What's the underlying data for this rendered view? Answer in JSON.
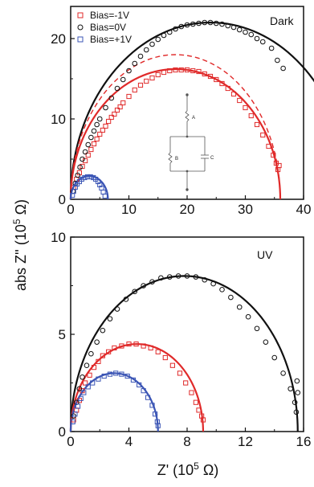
{
  "ylabel_parts": [
    "abs Z'' (10",
    "5",
    " Ω)"
  ],
  "xlabel_parts": [
    "Z' (10",
    "5",
    " Ω)"
  ],
  "colors": {
    "red": "#e02a2a",
    "black": "#111111",
    "blue": "#3b55b5",
    "circuit": "#555555"
  },
  "circuit": {
    "labels": [
      "A",
      "B",
      "C"
    ]
  },
  "chart_data": [
    {
      "type": "scatter",
      "panel": "top",
      "annotation": "Dark",
      "xlim": [
        0,
        40
      ],
      "ylim": [
        0,
        24
      ],
      "x_ticks": [
        0,
        10,
        20,
        30,
        40
      ],
      "y_ticks": [
        0,
        10,
        20
      ],
      "legend_placement": "top-left",
      "series": [
        {
          "name": "Bias=-1V",
          "color": "red",
          "marker": "square",
          "points": [
            [
              0.5,
              1.5
            ],
            [
              1.0,
              2.5
            ],
            [
              1.5,
              3.3
            ],
            [
              2.0,
              4.1
            ],
            [
              2.5,
              4.8
            ],
            [
              3.0,
              5.5
            ],
            [
              3.5,
              6.2
            ],
            [
              4.0,
              6.9
            ],
            [
              4.5,
              7.5
            ],
            [
              5.0,
              8.1
            ],
            [
              5.5,
              8.6
            ],
            [
              6.0,
              9.1
            ],
            [
              6.5,
              9.7
            ],
            [
              7.0,
              10.2
            ],
            [
              7.5,
              10.6
            ],
            [
              8.0,
              11.1
            ],
            [
              8.5,
              11.5
            ],
            [
              9.0,
              12.0
            ],
            [
              10.0,
              12.8
            ],
            [
              11.0,
              13.6
            ],
            [
              12.0,
              14.2
            ],
            [
              13.0,
              14.7
            ],
            [
              14.0,
              15.1
            ],
            [
              15.0,
              15.5
            ],
            [
              16.0,
              15.8
            ],
            [
              17.0,
              16.0
            ],
            [
              18.0,
              16.1
            ],
            [
              19.0,
              16.1
            ],
            [
              20.0,
              16.1
            ],
            [
              21.0,
              16.0
            ],
            [
              22.0,
              15.9
            ],
            [
              23.0,
              15.6
            ],
            [
              24.0,
              15.3
            ],
            [
              25.0,
              14.9
            ],
            [
              26.0,
              14.4
            ],
            [
              27.0,
              13.8
            ],
            [
              28.0,
              13.1
            ],
            [
              29.0,
              12.3
            ],
            [
              30.0,
              11.4
            ],
            [
              31.0,
              10.4
            ],
            [
              32.0,
              9.3
            ],
            [
              33.0,
              8.0
            ],
            [
              34.0,
              6.6
            ],
            [
              34.8,
              5.5
            ],
            [
              35.3,
              4.5
            ],
            [
              35.6,
              3.7
            ],
            [
              35.8,
              4.2
            ]
          ]
        },
        {
          "name": "Bias=0V",
          "color": "black",
          "marker": "circle",
          "points": [
            [
              0.4,
              1.0
            ],
            [
              0.8,
              2.0
            ],
            [
              1.2,
              3.0
            ],
            [
              1.6,
              4.0
            ],
            [
              2.0,
              5.0
            ],
            [
              2.5,
              5.9
            ],
            [
              3.0,
              6.8
            ],
            [
              3.5,
              7.7
            ],
            [
              4.0,
              8.5
            ],
            [
              4.5,
              9.3
            ],
            [
              5.0,
              10.0
            ],
            [
              6.0,
              11.4
            ],
            [
              7.0,
              12.6
            ],
            [
              8.0,
              13.8
            ],
            [
              9.0,
              14.9
            ],
            [
              10.0,
              16.0
            ],
            [
              11.0,
              16.9
            ],
            [
              12.0,
              17.8
            ],
            [
              13.0,
              18.6
            ],
            [
              14.0,
              19.3
            ],
            [
              15.0,
              19.9
            ],
            [
              16.0,
              20.4
            ],
            [
              17.0,
              20.8
            ],
            [
              18.0,
              21.2
            ],
            [
              19.0,
              21.5
            ],
            [
              20.0,
              21.7
            ],
            [
              21.0,
              21.8
            ],
            [
              22.0,
              21.9
            ],
            [
              23.0,
              22.0
            ],
            [
              24.0,
              22.0
            ],
            [
              25.0,
              21.9
            ],
            [
              26.0,
              21.8
            ],
            [
              27.0,
              21.6
            ],
            [
              28.0,
              21.4
            ],
            [
              29.0,
              21.1
            ],
            [
              30.0,
              20.8
            ],
            [
              31.0,
              20.5
            ],
            [
              32.0,
              20.0
            ],
            [
              33.0,
              19.6
            ],
            [
              34.5,
              18.8
            ],
            [
              35.5,
              17.3
            ],
            [
              36.5,
              16.3
            ]
          ]
        },
        {
          "name": "Bias=+1V",
          "color": "blue",
          "marker": "square",
          "points": [
            [
              0.3,
              0.5
            ],
            [
              0.5,
              1.0
            ],
            [
              0.8,
              1.5
            ],
            [
              1.1,
              1.9
            ],
            [
              1.5,
              2.2
            ],
            [
              1.9,
              2.5
            ],
            [
              2.4,
              2.7
            ],
            [
              2.9,
              2.8
            ],
            [
              3.4,
              2.8
            ],
            [
              3.9,
              2.7
            ],
            [
              4.3,
              2.5
            ],
            [
              4.7,
              2.2
            ],
            [
              5.0,
              1.8
            ],
            [
              5.3,
              1.4
            ],
            [
              5.6,
              0.9
            ],
            [
              5.9,
              0.4
            ]
          ]
        }
      ],
      "fit_curves": [
        {
          "color": "black",
          "style": "solid",
          "center": 24.0,
          "radius_x": 24.0,
          "height": 22.0
        },
        {
          "color": "red",
          "style": "solid",
          "center": 18.0,
          "radius_x": 18.0,
          "height": 16.2
        },
        {
          "color": "red",
          "style": "dashed",
          "center": 18.0,
          "radius_x": 18.0,
          "height": 18.0
        },
        {
          "color": "blue",
          "style": "solid",
          "center": 3.2,
          "radius_x": 3.2,
          "height": 2.9
        }
      ]
    },
    {
      "type": "scatter",
      "panel": "bottom",
      "annotation": "UV",
      "xlim": [
        0,
        16
      ],
      "ylim": [
        0,
        10
      ],
      "x_ticks": [
        0,
        4,
        8,
        12,
        16
      ],
      "y_ticks": [
        0,
        5,
        10
      ],
      "series": [
        {
          "color": "red",
          "marker": "square",
          "points": [
            [
              0.2,
              0.6
            ],
            [
              0.4,
              1.1
            ],
            [
              0.6,
              1.6
            ],
            [
              0.8,
              2.1
            ],
            [
              1.0,
              2.5
            ],
            [
              1.3,
              2.9
            ],
            [
              1.6,
              3.3
            ],
            [
              1.9,
              3.6
            ],
            [
              2.2,
              3.9
            ],
            [
              2.6,
              4.1
            ],
            [
              3.0,
              4.3
            ],
            [
              3.5,
              4.4
            ],
            [
              4.0,
              4.5
            ],
            [
              4.5,
              4.5
            ],
            [
              5.0,
              4.4
            ],
            [
              5.5,
              4.3
            ],
            [
              6.0,
              4.1
            ],
            [
              6.5,
              3.8
            ],
            [
              7.0,
              3.4
            ],
            [
              7.5,
              3.0
            ],
            [
              7.9,
              2.5
            ],
            [
              8.3,
              2.0
            ],
            [
              8.6,
              1.5
            ],
            [
              8.8,
              1.1
            ],
            [
              9.0,
              0.8
            ],
            [
              9.1,
              0.6
            ]
          ]
        },
        {
          "color": "black",
          "marker": "circle",
          "points": [
            [
              0.2,
              0.8
            ],
            [
              0.4,
              1.5
            ],
            [
              0.6,
              2.2
            ],
            [
              0.8,
              2.8
            ],
            [
              1.1,
              3.4
            ],
            [
              1.4,
              4.0
            ],
            [
              1.8,
              4.6
            ],
            [
              2.2,
              5.2
            ],
            [
              2.7,
              5.8
            ],
            [
              3.2,
              6.3
            ],
            [
              3.8,
              6.8
            ],
            [
              4.4,
              7.2
            ],
            [
              5.0,
              7.5
            ],
            [
              5.6,
              7.7
            ],
            [
              6.2,
              7.9
            ],
            [
              6.8,
              7.95
            ],
            [
              7.4,
              8.0
            ],
            [
              8.0,
              8.0
            ],
            [
              8.6,
              7.95
            ],
            [
              9.2,
              7.8
            ],
            [
              9.8,
              7.6
            ],
            [
              10.4,
              7.3
            ],
            [
              11.0,
              6.9
            ],
            [
              11.6,
              6.4
            ],
            [
              12.2,
              5.9
            ],
            [
              12.8,
              5.3
            ],
            [
              13.4,
              4.6
            ],
            [
              14.0,
              3.8
            ],
            [
              14.6,
              3.0
            ],
            [
              15.1,
              2.2
            ],
            [
              15.4,
              1.5
            ],
            [
              15.5,
              1.0
            ],
            [
              15.6,
              2.0
            ],
            [
              15.55,
              2.6
            ]
          ]
        },
        {
          "color": "blue",
          "marker": "square",
          "points": [
            [
              0.15,
              0.5
            ],
            [
              0.3,
              0.9
            ],
            [
              0.5,
              1.3
            ],
            [
              0.7,
              1.7
            ],
            [
              0.9,
              2.0
            ],
            [
              1.2,
              2.3
            ],
            [
              1.5,
              2.5
            ],
            [
              1.9,
              2.7
            ],
            [
              2.3,
              2.85
            ],
            [
              2.7,
              2.95
            ],
            [
              3.1,
              3.0
            ],
            [
              3.5,
              2.95
            ],
            [
              3.9,
              2.85
            ],
            [
              4.3,
              2.65
            ],
            [
              4.7,
              2.4
            ],
            [
              5.0,
              2.1
            ],
            [
              5.3,
              1.75
            ],
            [
              5.6,
              1.35
            ],
            [
              5.8,
              0.9
            ],
            [
              5.95,
              0.5
            ],
            [
              6.0,
              0.3
            ]
          ]
        }
      ],
      "fit_curves": [
        {
          "color": "black",
          "style": "solid",
          "center": 7.8,
          "radius_x": 7.8,
          "height": 8.0
        },
        {
          "color": "red",
          "style": "solid",
          "center": 4.55,
          "radius_x": 4.55,
          "height": 4.5
        },
        {
          "color": "blue",
          "style": "solid",
          "center": 3.0,
          "radius_x": 3.0,
          "height": 3.0
        }
      ]
    }
  ]
}
